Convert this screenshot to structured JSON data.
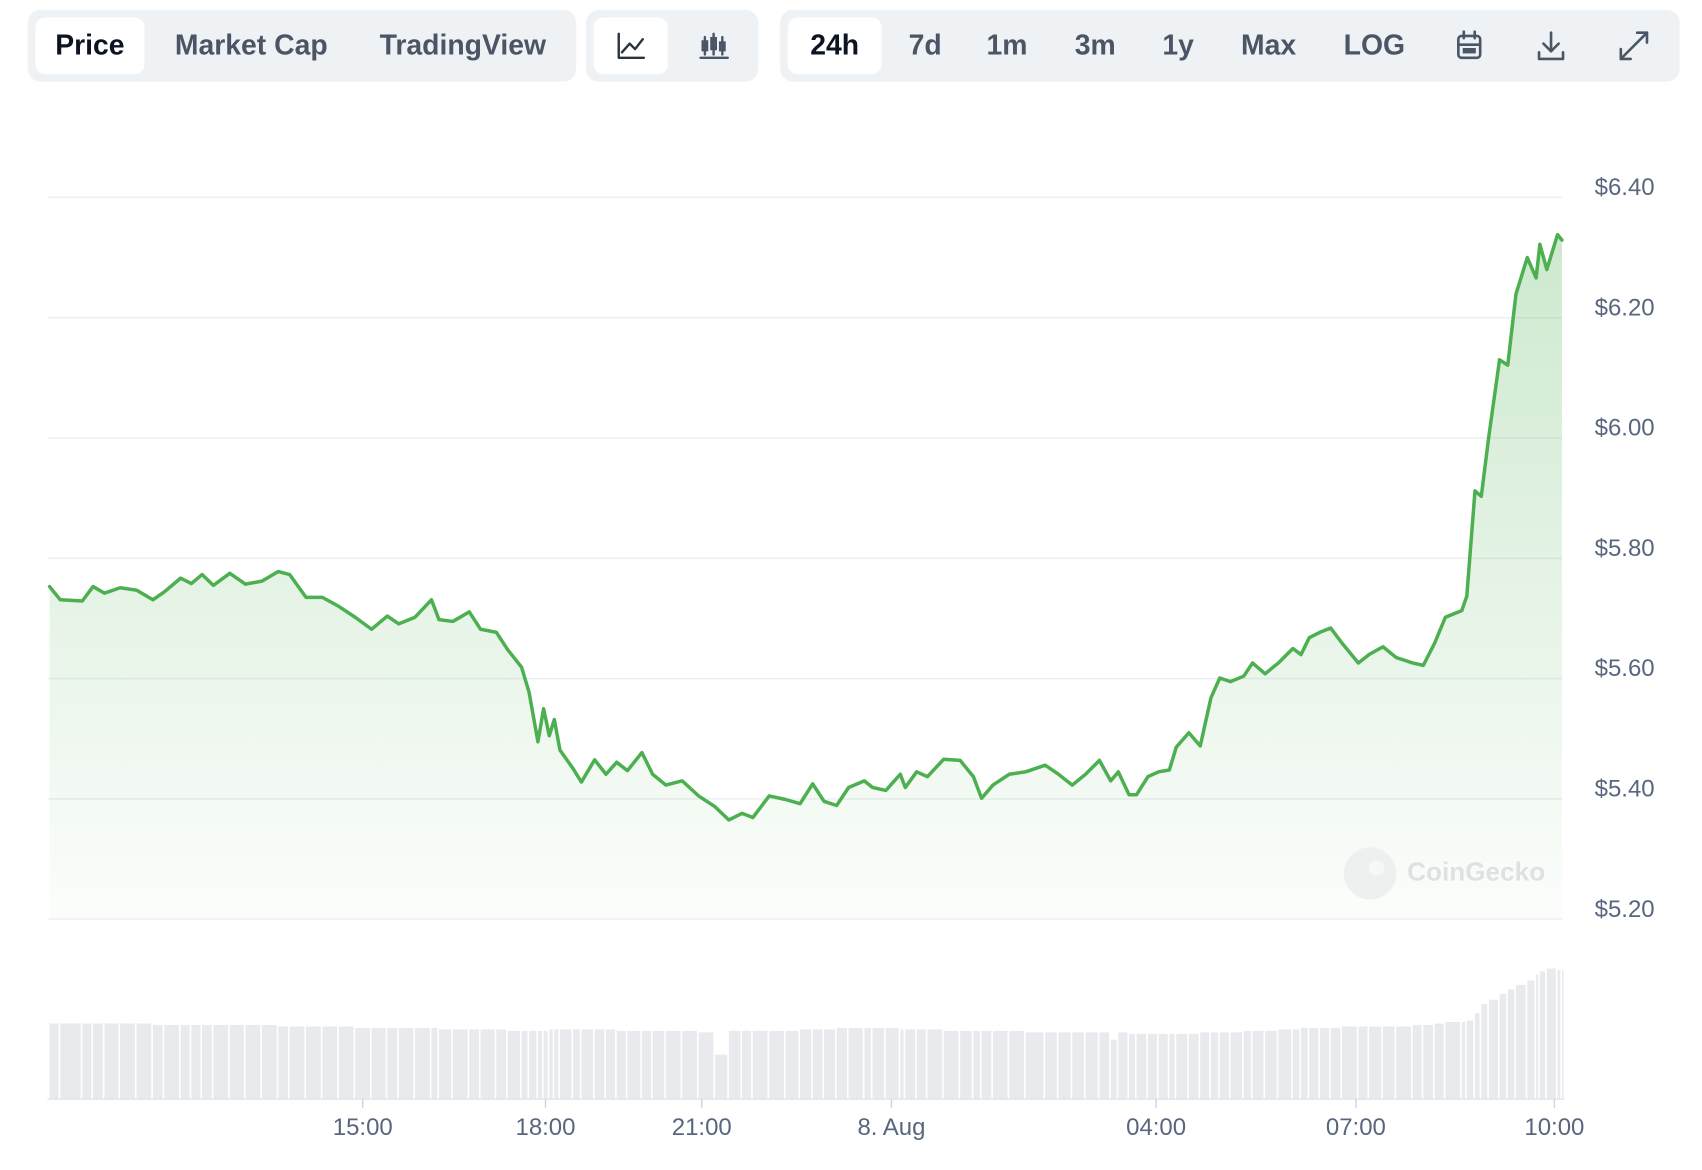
{
  "toolbar": {
    "tabs": [
      "Price",
      "Market Cap",
      "TradingView"
    ],
    "ranges": [
      "24h",
      "7d",
      "1m",
      "3m",
      "1y",
      "Max",
      "LOG"
    ]
  },
  "watermark": "CoinGecko",
  "chart_data": {
    "type": "line",
    "x": [
      0.0,
      0.17,
      0.52,
      0.69,
      0.87,
      1.12,
      1.38,
      1.64,
      1.82,
      2.08,
      2.25,
      2.42,
      2.6,
      2.86,
      3.11,
      3.37,
      3.63,
      3.81,
      4.07,
      4.33,
      4.59,
      4.85,
      5.11,
      5.36,
      5.54,
      5.8,
      6.06,
      6.18,
      6.4,
      6.66,
      6.84,
      7.09,
      7.27,
      7.49,
      7.61,
      7.75,
      7.84,
      7.93,
      8.01,
      8.1,
      8.31,
      8.44,
      8.65,
      8.83,
      9.0,
      9.17,
      9.4,
      9.57,
      9.78,
      10.04,
      10.3,
      10.56,
      10.78,
      10.99,
      11.16,
      11.42,
      11.68,
      11.91,
      12.11,
      12.29,
      12.49,
      12.68,
      12.93,
      13.06,
      13.27,
      13.5,
      13.58,
      13.76,
      13.93,
      14.19,
      14.45,
      14.66,
      14.79,
      14.97,
      15.23,
      15.49,
      15.8,
      16.01,
      16.23,
      16.44,
      16.66,
      16.84,
      16.96,
      17.13,
      17.25,
      17.43,
      17.6,
      17.77,
      17.88,
      18.08,
      18.26,
      18.43,
      18.57,
      18.74,
      18.95,
      19.09,
      19.29,
      19.5,
      19.73,
      19.86,
      19.99,
      20.16,
      20.33,
      20.51,
      20.77,
      20.94,
      21.16,
      21.37,
      21.63,
      21.8,
      21.98,
      22.15,
      22.41,
      22.49,
      22.62,
      22.72,
      22.84,
      23.01,
      23.14,
      23.27,
      23.45,
      23.59,
      23.65,
      23.76,
      23.93,
      24.0
    ],
    "series": [
      {
        "color": "#4caf50",
        "values": [
          5.753,
          5.731,
          5.729,
          5.753,
          5.742,
          5.751,
          5.747,
          5.731,
          5.744,
          5.767,
          5.758,
          5.773,
          5.755,
          5.775,
          5.757,
          5.762,
          5.778,
          5.773,
          5.735,
          5.735,
          5.72,
          5.702,
          5.682,
          5.704,
          5.691,
          5.702,
          5.731,
          5.698,
          5.695,
          5.711,
          5.682,
          5.677,
          5.648,
          5.619,
          5.577,
          5.495,
          5.55,
          5.505,
          5.532,
          5.481,
          5.45,
          5.428,
          5.465,
          5.441,
          5.461,
          5.447,
          5.477,
          5.441,
          5.423,
          5.43,
          5.405,
          5.387,
          5.365,
          5.376,
          5.369,
          5.405,
          5.399,
          5.392,
          5.425,
          5.396,
          5.389,
          5.419,
          5.43,
          5.419,
          5.414,
          5.441,
          5.419,
          5.445,
          5.437,
          5.466,
          5.464,
          5.437,
          5.401,
          5.423,
          5.441,
          5.445,
          5.456,
          5.441,
          5.423,
          5.441,
          5.464,
          5.43,
          5.445,
          5.407,
          5.407,
          5.437,
          5.445,
          5.448,
          5.486,
          5.51,
          5.488,
          5.568,
          5.601,
          5.595,
          5.604,
          5.626,
          5.608,
          5.626,
          5.65,
          5.64,
          5.668,
          5.677,
          5.684,
          5.659,
          5.626,
          5.64,
          5.653,
          5.635,
          5.626,
          5.622,
          5.659,
          5.702,
          5.713,
          5.737,
          5.912,
          5.903,
          6.003,
          6.13,
          6.121,
          6.239,
          6.3,
          6.266,
          6.322,
          6.28,
          6.338,
          6.329
        ]
      }
    ],
    "volume": {
      "color": "#e8eaed",
      "ylim": [
        0,
        100
      ],
      "values": [
        51,
        51,
        51,
        51,
        51,
        51,
        51,
        50,
        50,
        50,
        50,
        50,
        50,
        50,
        50,
        50,
        49,
        49,
        49,
        49,
        49,
        48,
        48,
        48,
        48,
        48,
        48,
        47,
        47,
        47,
        47,
        47,
        46,
        46,
        46,
        46,
        46,
        47,
        47,
        47,
        47,
        47,
        47,
        47,
        46,
        46,
        46,
        46,
        46,
        46,
        45,
        30,
        46,
        46,
        46,
        46,
        46,
        47,
        47,
        47,
        48,
        48,
        48,
        48,
        48,
        47,
        47,
        47,
        47,
        46,
        46,
        46,
        46,
        46,
        46,
        45,
        45,
        45,
        45,
        45,
        45,
        40,
        45,
        44,
        44,
        44,
        44,
        44,
        44,
        44,
        45,
        45,
        45,
        45,
        46,
        46,
        46,
        47,
        47,
        48,
        48,
        48,
        48,
        49,
        49,
        49,
        49,
        49,
        50,
        50,
        51,
        52,
        52,
        53,
        58,
        64,
        67,
        71,
        74,
        77,
        80,
        84,
        86,
        88,
        87,
        87
      ]
    },
    "xlim": [
      0,
      24
    ],
    "xticks": [
      {
        "value": 4.97,
        "label": "15:00"
      },
      {
        "value": 7.87,
        "label": "18:00"
      },
      {
        "value": 10.35,
        "label": "21:00"
      },
      {
        "value": 13.36,
        "label": "8. Aug"
      },
      {
        "value": 17.56,
        "label": "04:00"
      },
      {
        "value": 20.73,
        "label": "07:00"
      },
      {
        "value": 23.88,
        "label": "10:00"
      }
    ],
    "ylim": [
      5.2,
      6.4
    ],
    "yticks": [
      {
        "value": 5.2,
        "label": "$5.20"
      },
      {
        "value": 5.4,
        "label": "$5.40"
      },
      {
        "value": 5.6,
        "label": "$5.60"
      },
      {
        "value": 5.8,
        "label": "$5.80"
      },
      {
        "value": 6.0,
        "label": "$6.00"
      },
      {
        "value": 6.2,
        "label": "$6.20"
      },
      {
        "value": 6.4,
        "label": "$6.40"
      }
    ],
    "grid": true
  }
}
